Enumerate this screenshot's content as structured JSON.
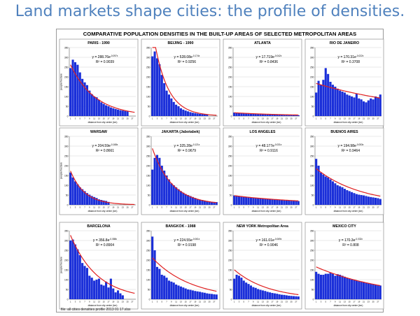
{
  "slide_title": "Land markets shape cities: the profile of densities.",
  "figure_title": "COMPARATIVE POPULATION DENSITIES IN THE BUILT-UP AREAS OF SELECTED METROPOLITAN AREAS",
  "footnote": "file: all cities densities profile 2013 01 17.xlsx",
  "colors": {
    "bar": "#1a2fd9",
    "trend": "#e02020",
    "grid": "#c8c8c8"
  },
  "chart_data": [
    {
      "type": "bar",
      "title": "PARIS - 1990",
      "xlabel": "distance from city center (km)",
      "ylabel": "people/hectare",
      "ylim": [
        0,
        350
      ],
      "equation": "y = 288.76e",
      "exponent": "-0.097x",
      "r2": "R² = 0.9039",
      "trend": {
        "a": 288.76,
        "b": -0.097
      },
      "values": [
        245,
        288,
        275,
        262,
        223,
        190,
        172,
        158,
        130,
        112,
        100,
        96,
        83,
        70,
        62,
        55,
        50,
        44,
        40,
        36,
        33,
        30,
        28,
        26,
        24,
        0,
        0,
        0
      ]
    },
    {
      "type": "bar",
      "title": "BEIJING - 1990",
      "xlabel": "distance from city center (km)",
      "ylabel": "",
      "ylim": [
        0,
        350
      ],
      "equation": "y = 528.08e",
      "exponent": "-0.174x",
      "r2": "R² = 0.9256",
      "trend": {
        "a": 528.08,
        "b": -0.174
      },
      "values": [
        305,
        330,
        295,
        265,
        210,
        168,
        130,
        110,
        90,
        72,
        58,
        50,
        40,
        33,
        28,
        24,
        20,
        17,
        15,
        13,
        11,
        10,
        9,
        8,
        0,
        0,
        0,
        0
      ]
    },
    {
      "type": "bar",
      "title": "ATLANTA",
      "xlabel": "distance from city center (km)",
      "ylabel": "",
      "ylim": [
        0,
        350
      ],
      "equation": "y = 17.719e",
      "exponent": "-0.042x",
      "r2": "R² = 0.8436",
      "trend": {
        "a": 17.719,
        "b": -0.042
      },
      "values": [
        18,
        17,
        16,
        16,
        15,
        14,
        13,
        12,
        12,
        11,
        10,
        10,
        9,
        9,
        8,
        8,
        7,
        7,
        7,
        6,
        6,
        6,
        5,
        5,
        5,
        5,
        4,
        4
      ]
    },
    {
      "type": "bar",
      "title": "RIO DE JANEIRO",
      "xlabel": "distance from city center (km)",
      "ylabel": "",
      "ylim": [
        0,
        350
      ],
      "equation": "y = 170.31e",
      "exponent": "-0.022x",
      "r2": "R² = 0.3708",
      "trend": {
        "a": 170.31,
        "b": -0.022
      },
      "values": [
        120,
        180,
        160,
        185,
        245,
        215,
        175,
        160,
        150,
        140,
        130,
        125,
        120,
        110,
        105,
        100,
        95,
        115,
        90,
        85,
        75,
        70,
        80,
        90,
        85,
        100,
        95,
        110
      ]
    },
    {
      "type": "bar",
      "title": "WARSAW",
      "xlabel": "distance from city center (km)",
      "ylabel": "people/hectare",
      "ylim": [
        0,
        350
      ],
      "equation": "y = 204.59e",
      "exponent": "-0.168x",
      "r2": "R² = 0.8661",
      "trend": {
        "a": 204.59,
        "b": -0.168
      },
      "values": [
        165,
        140,
        120,
        105,
        90,
        80,
        70,
        60,
        52,
        45,
        40,
        35,
        28,
        25,
        22,
        20,
        15,
        0,
        0,
        0,
        0,
        0,
        0,
        0,
        0,
        0,
        0,
        0
      ]
    },
    {
      "type": "bar",
      "title": "JAKARTA (Jabotabek)",
      "xlabel": "distance from city center (km)",
      "ylabel": "",
      "ylim": [
        0,
        350
      ],
      "equation": "y = 325.28e",
      "exponent": "-0.121x",
      "r2": "R² = 0.9679",
      "trend": {
        "a": 325.28,
        "b": -0.121
      },
      "values": [
        180,
        240,
        255,
        240,
        200,
        175,
        150,
        130,
        110,
        100,
        90,
        80,
        70,
        62,
        55,
        50,
        45,
        40,
        35,
        30,
        27,
        25,
        22,
        20,
        18,
        16,
        15,
        14
      ]
    },
    {
      "type": "bar",
      "title": "LOS ANGELES",
      "xlabel": "distance from city center (km)",
      "ylabel": "",
      "ylim": [
        0,
        350
      ],
      "equation": "y = 48.177e",
      "exponent": "-0.031x",
      "r2": "R² = 0.9116",
      "trend": {
        "a": 48.177,
        "b": -0.031
      },
      "values": [
        48,
        47,
        45,
        44,
        42,
        40,
        39,
        38,
        37,
        36,
        35,
        33,
        32,
        31,
        30,
        29,
        28,
        27,
        26,
        25,
        24,
        23,
        22,
        22,
        21,
        20,
        20,
        19
      ]
    },
    {
      "type": "bar",
      "title": "BUENOS AIRES",
      "xlabel": "distance from city center (km)",
      "ylabel": "",
      "ylim": [
        0,
        350
      ],
      "equation": "y = 194.98e",
      "exponent": "-0.053x",
      "r2": "R² = 0.9464",
      "trend": {
        "a": 194.98,
        "b": -0.053
      },
      "values": [
        235,
        200,
        165,
        155,
        145,
        140,
        130,
        120,
        110,
        100,
        95,
        90,
        82,
        75,
        70,
        65,
        60,
        55,
        52,
        50,
        48,
        45,
        42,
        40,
        38,
        36,
        34,
        30
      ]
    },
    {
      "type": "bar",
      "title": "BARCELONA",
      "xlabel": "distance from city center (km)",
      "ylabel": "people/hectare",
      "ylim": [
        0,
        350
      ],
      "equation": "y = 356.8e",
      "exponent": "-0.088x",
      "r2": "R² = 0.8904",
      "trend": {
        "a": 356.8,
        "b": -0.088
      },
      "values": [
        300,
        305,
        280,
        255,
        225,
        185,
        170,
        160,
        120,
        110,
        95,
        100,
        105,
        75,
        70,
        90,
        60,
        105,
        55,
        35,
        45,
        30,
        20,
        0,
        0,
        0,
        0,
        0
      ]
    },
    {
      "type": "bar",
      "title": "BANGKOK - 1988",
      "xlabel": "distance from city center (km)",
      "ylabel": "",
      "ylim": [
        0,
        350
      ],
      "equation": "y = 224.55e",
      "exponent": "-0.061x",
      "r2": "R² = 0.9198",
      "trend": {
        "a": 224.55,
        "b": -0.061
      },
      "values": [
        320,
        250,
        165,
        155,
        125,
        120,
        110,
        95,
        90,
        85,
        75,
        70,
        65,
        60,
        55,
        50,
        48,
        45,
        42,
        40,
        38,
        35,
        33,
        30,
        28,
        27,
        25,
        24
      ]
    },
    {
      "type": "bar",
      "title": "NEW YORK Metropolitan Area",
      "xlabel": "distance from city center (km)",
      "ylabel": "",
      "ylim": [
        0,
        350
      ],
      "equation": "y = 161.01e",
      "exponent": "-0.069x",
      "r2": "R² = 0.9046",
      "trend": {
        "a": 161.01,
        "b": -0.069
      },
      "values": [
        105,
        125,
        120,
        110,
        95,
        85,
        78,
        70,
        62,
        58,
        52,
        48,
        45,
        42,
        38,
        35,
        32,
        30,
        28,
        25,
        23,
        22,
        20,
        18,
        17,
        16,
        15,
        14
      ]
    },
    {
      "type": "bar",
      "title": "MEXICO CITY",
      "xlabel": "distance from city center (km)",
      "ylabel": "",
      "ylim": [
        0,
        350
      ],
      "equation": "y = 170.3e",
      "exponent": "-0.032x",
      "r2": "R² = 0.808",
      "trend": {
        "a": 170.3,
        "b": -0.032
      },
      "values": [
        140,
        130,
        125,
        125,
        130,
        130,
        135,
        130,
        120,
        128,
        125,
        120,
        115,
        110,
        105,
        100,
        100,
        95,
        92,
        90,
        88,
        85,
        82,
        80,
        78,
        75,
        72,
        70
      ]
    }
  ]
}
